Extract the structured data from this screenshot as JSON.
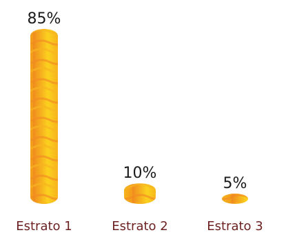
{
  "chart_data": {
    "type": "bar",
    "categories": [
      "Estrato 1",
      "Estrato 2",
      "Estrato 3"
    ],
    "values": [
      85,
      10,
      5
    ],
    "value_labels": [
      "85%",
      "10%",
      "5%"
    ],
    "title": "",
    "xlabel": "",
    "ylabel": "",
    "ylim": [
      0,
      85
    ],
    "grid": false,
    "legend": "none"
  },
  "colors": {
    "bar_light": "#fbd51c",
    "bar_dark": "#f39a1a",
    "bar_stripe": "#f18a22",
    "category_text": "#6b1f1f",
    "value_text": "#1a1a1a"
  }
}
